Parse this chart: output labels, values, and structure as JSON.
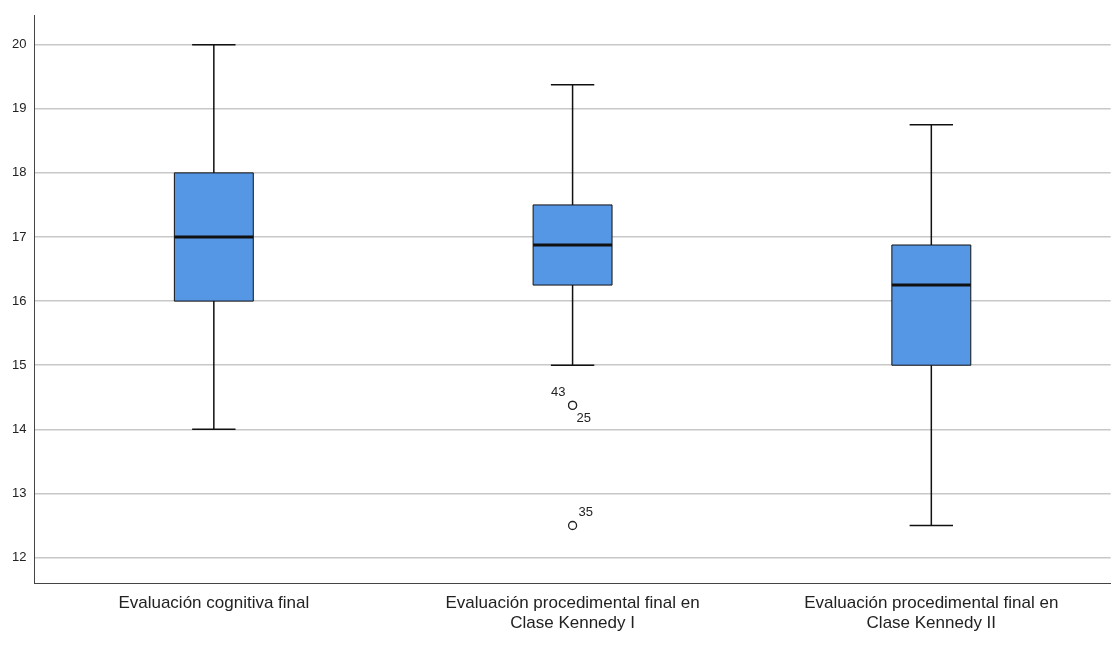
{
  "chart_data": {
    "type": "box",
    "categories": [
      "Evaluación cognitiva final",
      "Evaluación procedimental final en Clase Kennedy I",
      "Evaluación procedimental final en Clase Kennedy II"
    ],
    "boxes": [
      {
        "low": 14,
        "q1": 16,
        "median": 17,
        "q3": 18,
        "high": 20
      },
      {
        "low": 15,
        "q1": 16.25,
        "median": 16.875,
        "q3": 17.5,
        "high": 19.375,
        "outliers": [
          14.375,
          14.375,
          12.5
        ]
      },
      {
        "low": 12.5,
        "q1": 15,
        "median": 16.25,
        "q3": 16.875,
        "high": 18.75
      }
    ],
    "color": "#5596e5",
    "ylim": [
      11.6,
      20.45
    ],
    "yticks": [
      12,
      13,
      14,
      15,
      16,
      17,
      18,
      19,
      20
    ],
    "grid": "y",
    "annotations": [
      "43",
      "25",
      "35"
    ]
  }
}
